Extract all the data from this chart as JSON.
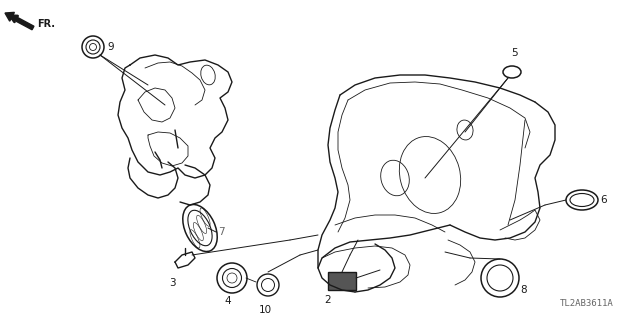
{
  "background": "#ffffff",
  "line_color": "#1a1a1a",
  "diagram_id": "TL2AB3611A",
  "lw_main": 1.0,
  "lw_thin": 0.6,
  "lw_leader": 0.7,
  "figsize": [
    6.4,
    3.2
  ],
  "dpi": 100
}
